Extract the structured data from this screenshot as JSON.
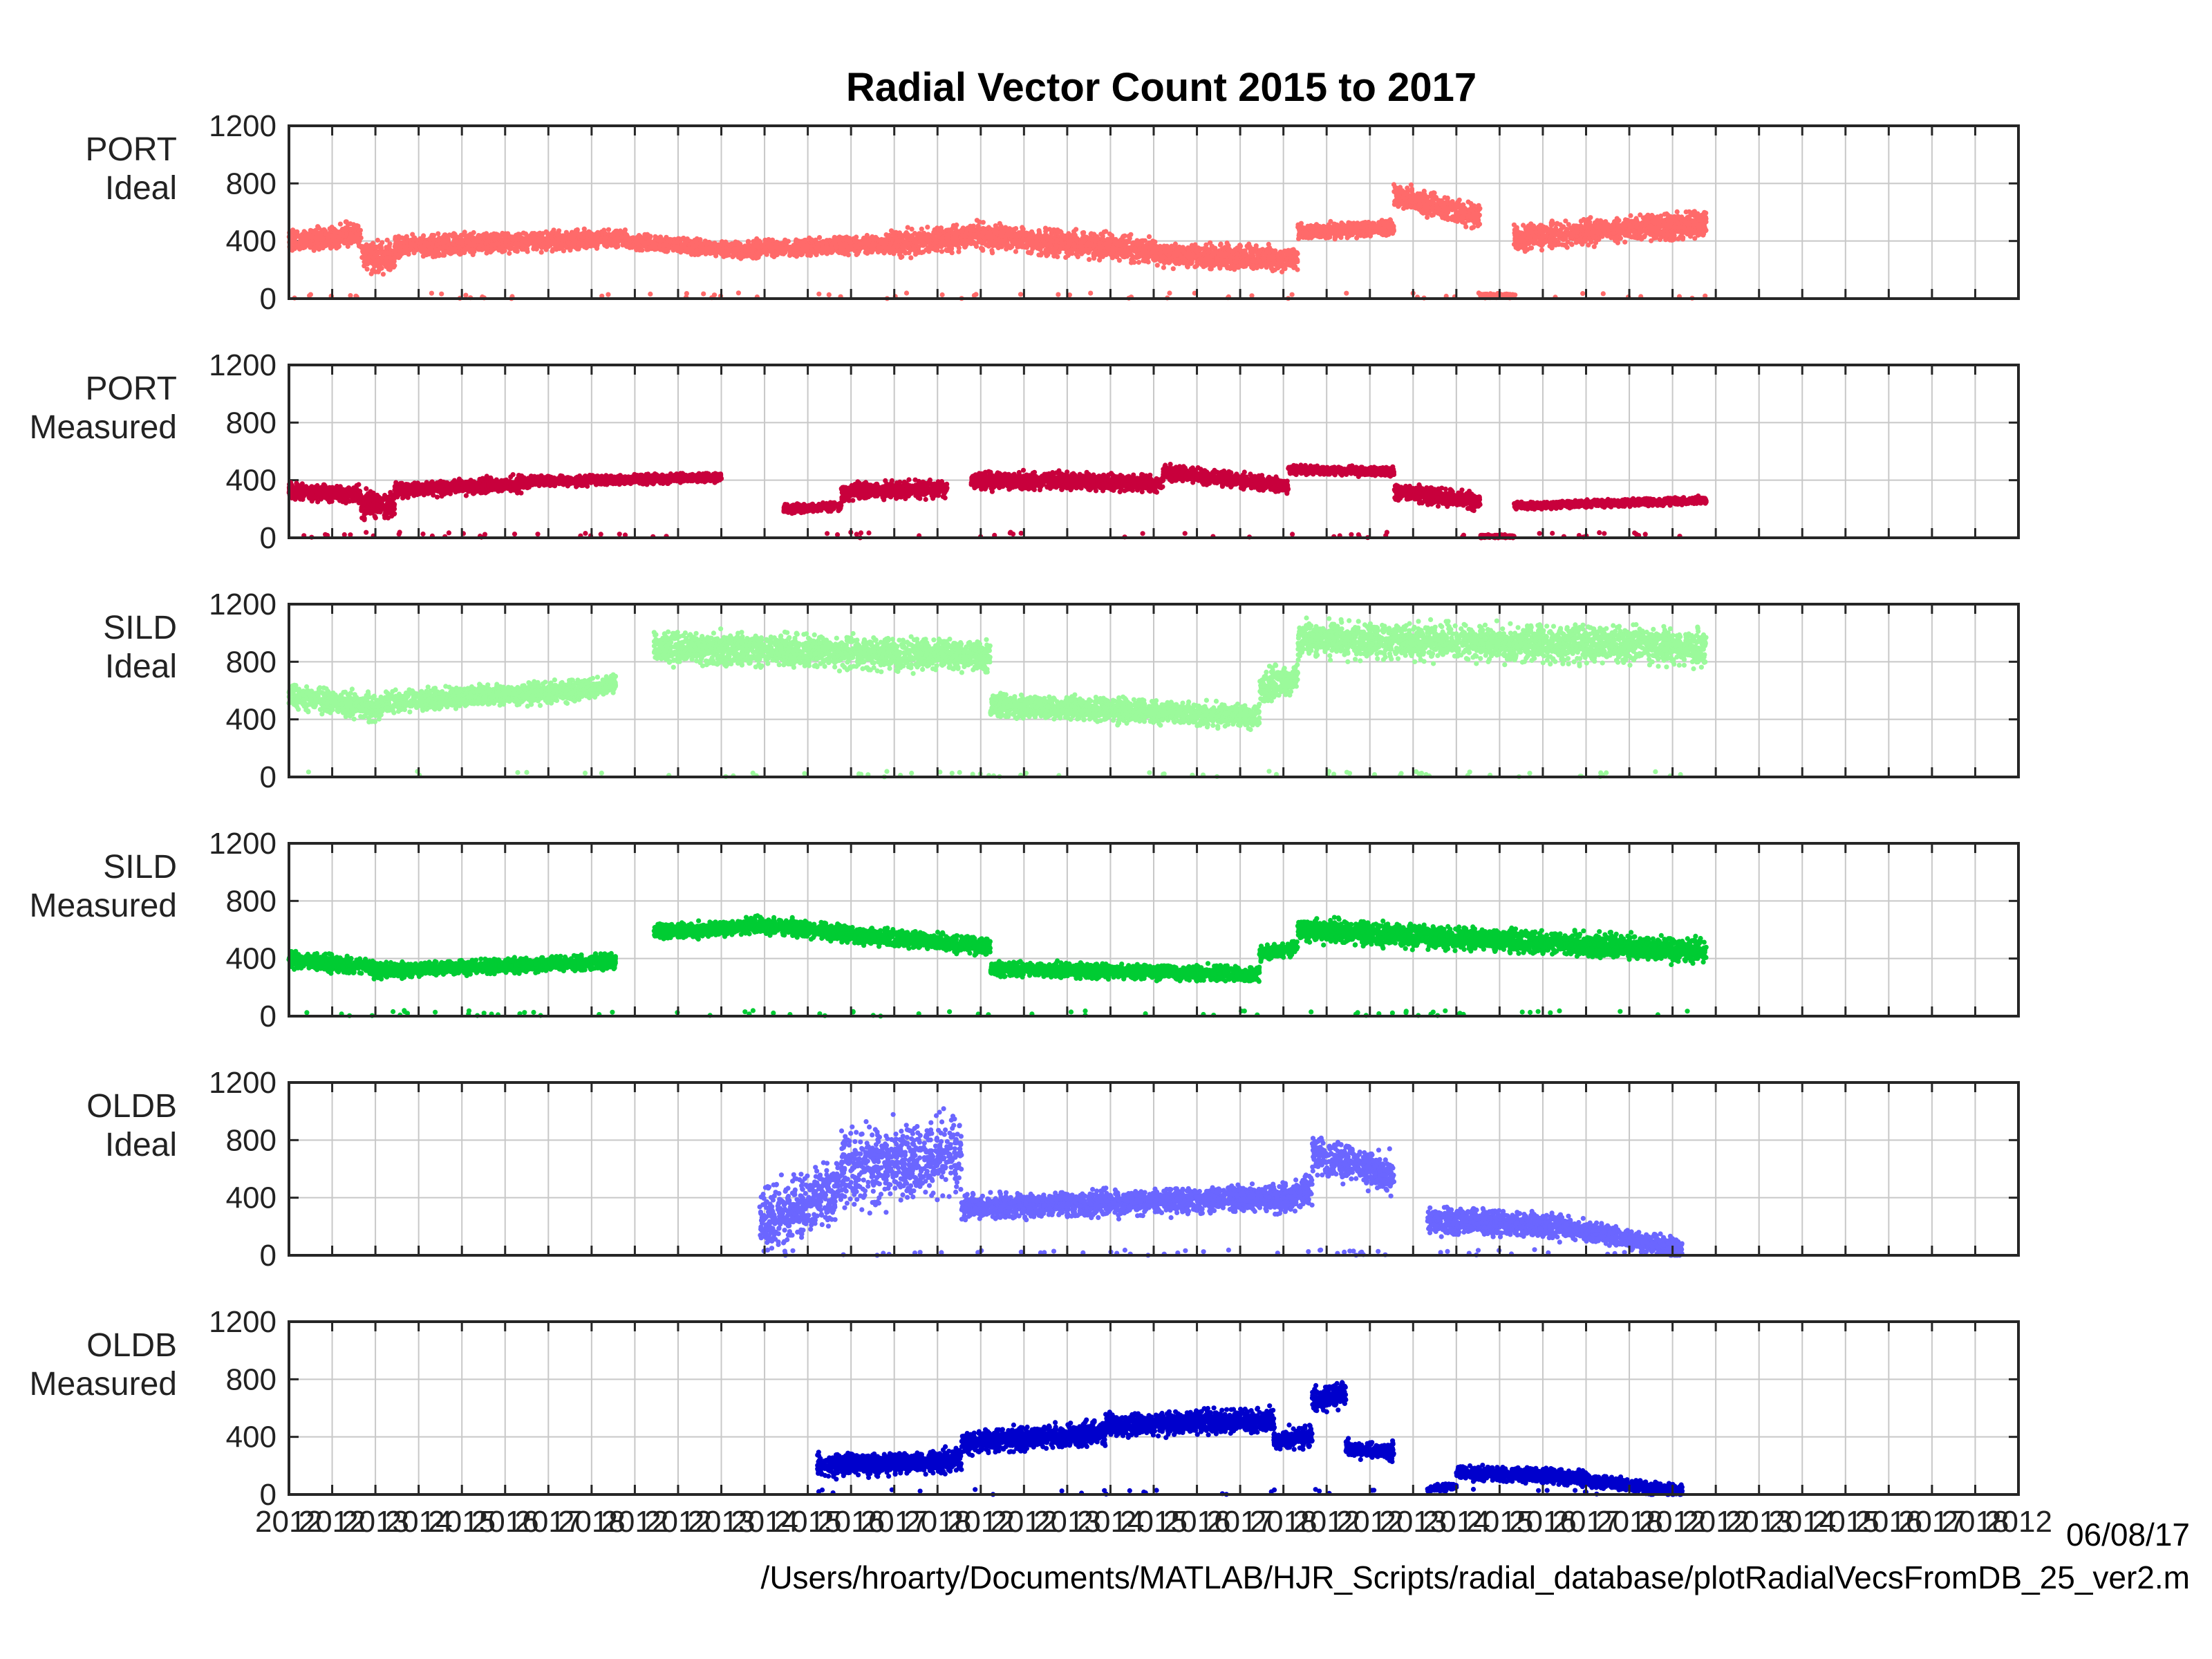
{
  "footer": {
    "date": "06/08/17",
    "path": "/Users/hroarty/Documents/MATLAB/HJR_Scripts/radial_database/plotRadialVecsFromDB_25_ver2.m"
  },
  "chart_data": {
    "type": "scatter",
    "title": "Radial Vector Count 2015 to 2017",
    "ylim": [
      0,
      1200
    ],
    "yticks": [
      "0",
      "400",
      "800",
      "1200"
    ],
    "xticks": [
      "2012",
      "2012",
      "2013",
      "2014",
      "2015",
      "2016",
      "2017",
      "2018",
      "2012",
      "2012",
      "2013",
      "2014",
      "2015",
      "2016",
      "2017",
      "2018",
      "2012",
      "2012",
      "2013",
      "2014",
      "2015",
      "2016",
      "2017",
      "2018",
      "2012",
      "2012",
      "2013",
      "2014",
      "2015",
      "2016",
      "2017",
      "2018",
      "2012",
      "2012",
      "2013",
      "2014",
      "2015",
      "2016",
      "2017",
      "2018",
      "2012"
    ],
    "x_domain": [
      0,
      36
    ],
    "grid": true,
    "panels": [
      {
        "label_line1": "PORT",
        "label_line2": "Ideal",
        "color": "#ff6a6a",
        "segments": [
          {
            "x0": 0.0,
            "x1": 1.5,
            "y0": 400,
            "y1": 450,
            "spread": 110
          },
          {
            "x0": 1.5,
            "x1": 2.2,
            "y0": 300,
            "y1": 280,
            "spread": 150
          },
          {
            "x0": 2.2,
            "x1": 7.0,
            "y0": 360,
            "y1": 420,
            "spread": 90
          },
          {
            "x0": 7.0,
            "x1": 9.5,
            "y0": 400,
            "y1": 330,
            "spread": 70
          },
          {
            "x0": 9.5,
            "x1": 12.5,
            "y0": 340,
            "y1": 380,
            "spread": 80
          },
          {
            "x0": 12.5,
            "x1": 14.0,
            "y0": 380,
            "y1": 420,
            "spread": 120
          },
          {
            "x0": 14.0,
            "x1": 18.0,
            "y0": 450,
            "y1": 330,
            "spread": 120
          },
          {
            "x0": 18.0,
            "x1": 21.0,
            "y0": 300,
            "y1": 280,
            "spread": 110
          },
          {
            "x0": 21.0,
            "x1": 23.0,
            "y0": 460,
            "y1": 500,
            "spread": 70
          },
          {
            "x0": 23.0,
            "x1": 24.8,
            "y0": 720,
            "y1": 560,
            "spread": 110
          },
          {
            "x0": 24.8,
            "x1": 25.5,
            "y0": 20,
            "y1": 20,
            "spread": 20
          },
          {
            "x0": 25.5,
            "x1": 29.5,
            "y0": 420,
            "y1": 520,
            "spread": 120
          }
        ]
      },
      {
        "label_line1": "PORT",
        "label_line2": "Measured",
        "color": "#c8003c",
        "segments": [
          {
            "x0": 0.0,
            "x1": 1.5,
            "y0": 320,
            "y1": 300,
            "spread": 80
          },
          {
            "x0": 1.5,
            "x1": 2.2,
            "y0": 230,
            "y1": 220,
            "spread": 120
          },
          {
            "x0": 2.2,
            "x1": 5.0,
            "y0": 330,
            "y1": 380,
            "spread": 70
          },
          {
            "x0": 5.0,
            "x1": 9.0,
            "y0": 390,
            "y1": 420,
            "spread": 45
          },
          {
            "x0": 10.3,
            "x1": 11.5,
            "y0": 200,
            "y1": 220,
            "spread": 40
          },
          {
            "x0": 11.5,
            "x1": 13.7,
            "y0": 320,
            "y1": 340,
            "spread": 80
          },
          {
            "x0": 14.2,
            "x1": 18.2,
            "y0": 400,
            "y1": 380,
            "spread": 80
          },
          {
            "x0": 18.2,
            "x1": 20.8,
            "y0": 460,
            "y1": 360,
            "spread": 70
          },
          {
            "x0": 20.8,
            "x1": 23.0,
            "y0": 470,
            "y1": 460,
            "spread": 40
          },
          {
            "x0": 23.0,
            "x1": 24.8,
            "y0": 320,
            "y1": 250,
            "spread": 80
          },
          {
            "x0": 24.8,
            "x1": 25.5,
            "y0": 10,
            "y1": 10,
            "spread": 15
          },
          {
            "x0": 25.5,
            "x1": 29.5,
            "y0": 220,
            "y1": 260,
            "spread": 35
          }
        ]
      },
      {
        "label_line1": "SILD",
        "label_line2": "Ideal",
        "color": "#9bfa9b",
        "segments": [
          {
            "x0": 0.0,
            "x1": 2.0,
            "y0": 560,
            "y1": 470,
            "spread": 120
          },
          {
            "x0": 2.0,
            "x1": 6.0,
            "y0": 520,
            "y1": 600,
            "spread": 100
          },
          {
            "x0": 6.0,
            "x1": 6.8,
            "y0": 600,
            "y1": 640,
            "spread": 90
          },
          {
            "x0": 7.6,
            "x1": 14.6,
            "y0": 900,
            "y1": 840,
            "spread": 150
          },
          {
            "x0": 14.6,
            "x1": 20.2,
            "y0": 500,
            "y1": 420,
            "spread": 110
          },
          {
            "x0": 20.2,
            "x1": 21.0,
            "y0": 600,
            "y1": 700,
            "spread": 150
          },
          {
            "x0": 21.0,
            "x1": 29.5,
            "y0": 960,
            "y1": 900,
            "spread": 170
          }
        ]
      },
      {
        "label_line1": "SILD",
        "label_line2": "Measured",
        "color": "#00cc33",
        "segments": [
          {
            "x0": 0.0,
            "x1": 2.0,
            "y0": 400,
            "y1": 320,
            "spread": 80
          },
          {
            "x0": 2.0,
            "x1": 6.8,
            "y0": 320,
            "y1": 380,
            "spread": 70
          },
          {
            "x0": 7.6,
            "x1": 9.5,
            "y0": 580,
            "y1": 620,
            "spread": 70
          },
          {
            "x0": 9.5,
            "x1": 14.6,
            "y0": 640,
            "y1": 480,
            "spread": 80
          },
          {
            "x0": 14.6,
            "x1": 20.2,
            "y0": 330,
            "y1": 290,
            "spread": 70
          },
          {
            "x0": 20.2,
            "x1": 21.0,
            "y0": 430,
            "y1": 480,
            "spread": 70
          },
          {
            "x0": 21.0,
            "x1": 29.5,
            "y0": 600,
            "y1": 450,
            "spread": 110
          }
        ]
      },
      {
        "label_line1": "OLDB",
        "label_line2": "Ideal",
        "color": "#6b66ff",
        "segments": [
          {
            "x0": 9.8,
            "x1": 11.5,
            "y0": 250,
            "y1": 450,
            "spread": 300
          },
          {
            "x0": 11.5,
            "x1": 14.0,
            "y0": 600,
            "y1": 700,
            "spread": 380
          },
          {
            "x0": 14.0,
            "x1": 20.5,
            "y0": 330,
            "y1": 400,
            "spread": 120
          },
          {
            "x0": 20.5,
            "x1": 21.3,
            "y0": 380,
            "y1": 450,
            "spread": 150
          },
          {
            "x0": 21.3,
            "x1": 23.0,
            "y0": 700,
            "y1": 560,
            "spread": 180
          },
          {
            "x0": 23.7,
            "x1": 26.5,
            "y0": 250,
            "y1": 200,
            "spread": 120
          },
          {
            "x0": 26.5,
            "x1": 29.0,
            "y0": 200,
            "y1": 40,
            "spread": 90
          }
        ]
      },
      {
        "label_line1": "OLDB",
        "label_line2": "Measured",
        "color": "#0000cc",
        "segments": [
          {
            "x0": 11.0,
            "x1": 14.0,
            "y0": 200,
            "y1": 240,
            "spread": 110
          },
          {
            "x0": 14.0,
            "x1": 17.0,
            "y0": 360,
            "y1": 430,
            "spread": 110
          },
          {
            "x0": 17.0,
            "x1": 20.5,
            "y0": 480,
            "y1": 520,
            "spread": 110
          },
          {
            "x0": 20.5,
            "x1": 21.3,
            "y0": 380,
            "y1": 400,
            "spread": 100
          },
          {
            "x0": 21.3,
            "x1": 22.0,
            "y0": 650,
            "y1": 700,
            "spread": 120
          },
          {
            "x0": 22.0,
            "x1": 23.0,
            "y0": 320,
            "y1": 300,
            "spread": 80
          },
          {
            "x0": 23.7,
            "x1": 24.3,
            "y0": 40,
            "y1": 60,
            "spread": 30
          },
          {
            "x0": 24.3,
            "x1": 27.0,
            "y0": 150,
            "y1": 120,
            "spread": 70
          },
          {
            "x0": 27.0,
            "x1": 29.0,
            "y0": 100,
            "y1": 20,
            "spread": 60
          }
        ]
      }
    ]
  }
}
